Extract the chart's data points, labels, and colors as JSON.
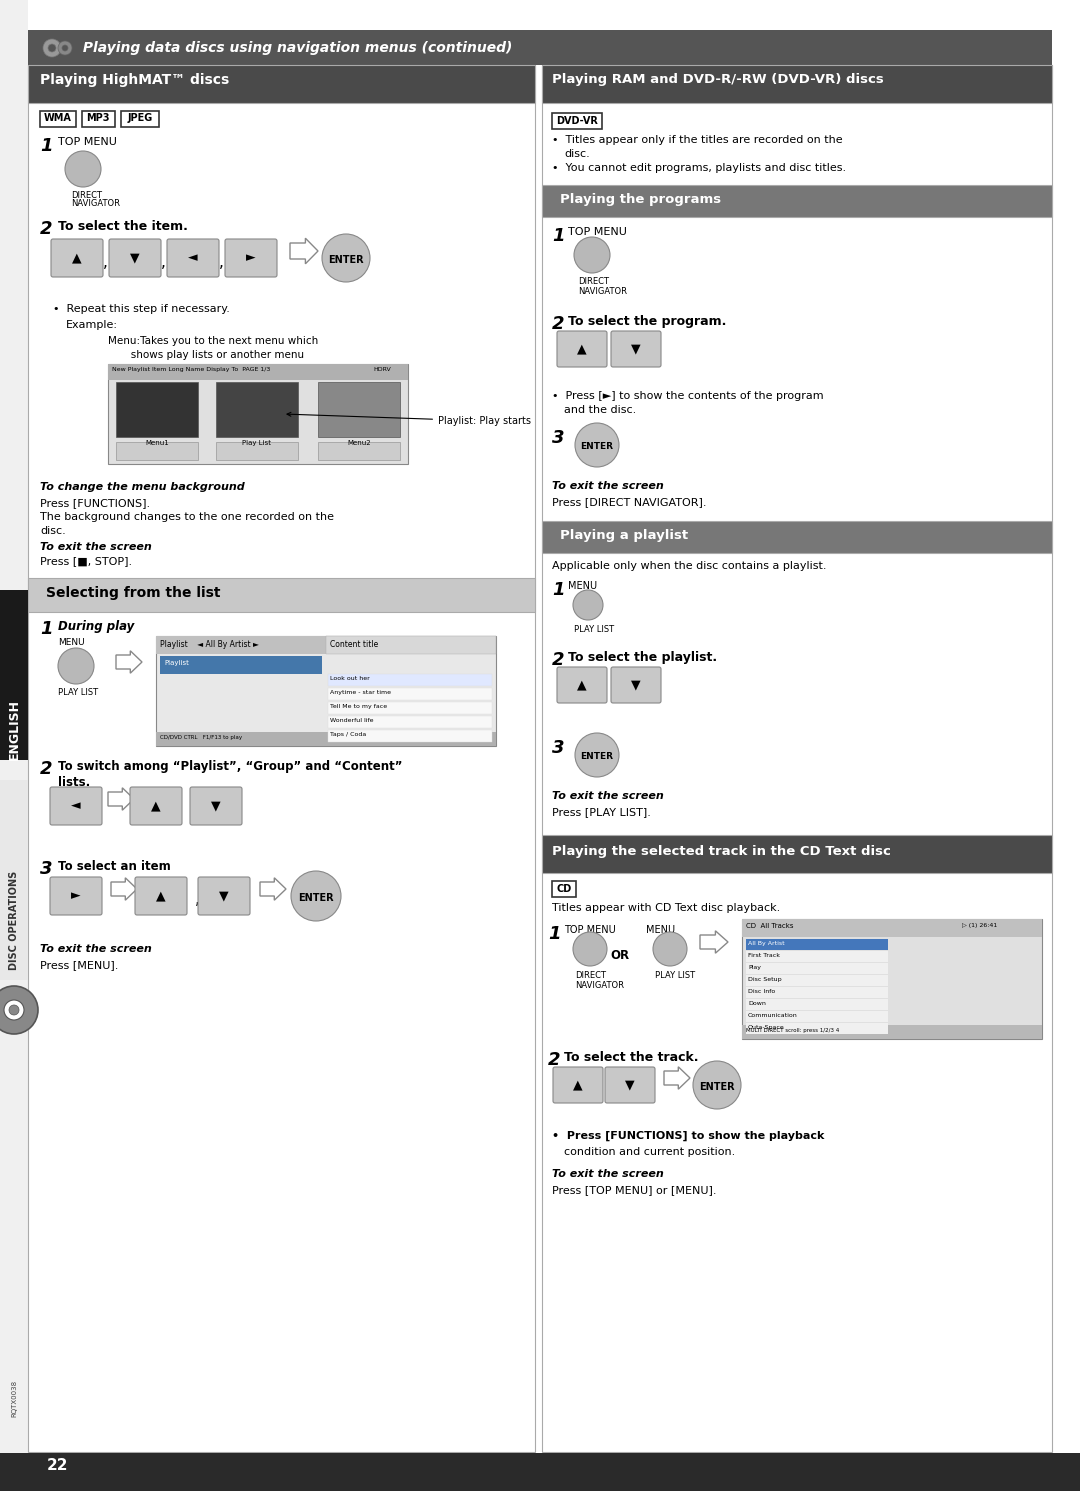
{
  "page_bg": "#ffffff",
  "header_bg": "#555555",
  "header_text": " Playing data discs using navigation menus (continued)",
  "left_panel_header_bg": "#4a4a4a",
  "left_panel_header_text": "Playing HighMAT™ discs",
  "right_panel_header_bg": "#4a4a4a",
  "right_panel_header_text": "Playing RAM and DVD-R/-RW (DVD-VR) discs",
  "subheader_bg": "#777777",
  "subheader_light_bg": "#c8c8c8",
  "cd_section_header_bg": "#4a4a4a",
  "cd_section_header_text": "Playing the selected track in the CD Text disc",
  "button_color": "#c0c0c0",
  "button_border": "#888888",
  "footer_bg": "#2a2a2a",
  "footer_text": "22",
  "english_bar_bg": "#1a1a1a",
  "disc_ops_bg": "#eeeeee"
}
